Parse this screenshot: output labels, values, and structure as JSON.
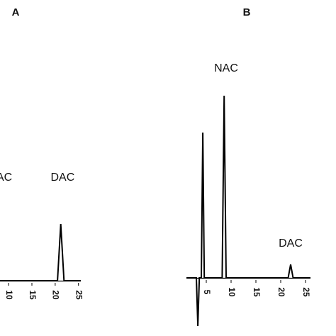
{
  "chart_data": [
    {
      "type": "chromatogram",
      "panel": "A",
      "x": [
        8,
        20.5,
        21.2,
        21.9,
        25.5
      ],
      "values": [
        0,
        0,
        80,
        0,
        0
      ],
      "xlim": [
        8,
        25.5
      ],
      "xticks": [
        10,
        15,
        20,
        25
      ],
      "ylim": [
        -70,
        260
      ],
      "annotations": [
        {
          "text": "NAC",
          "x": 8.2,
          "y": 145
        },
        {
          "text": "DAC",
          "x": 21.6,
          "y": 145
        }
      ],
      "color": "#000000"
    },
    {
      "type": "chromatogram",
      "panel": "B",
      "x": [
        1,
        3.0,
        3.3,
        3.6,
        4.0,
        4.3,
        4.6,
        8.2,
        8.6,
        9.0,
        21.5,
        22,
        22.5,
        26
      ],
      "values": [
        0,
        0,
        -68,
        0,
        0,
        205,
        0,
        0,
        257,
        0,
        0,
        19,
        0,
        0
      ],
      "xlim": [
        1,
        26
      ],
      "xticks": [
        5,
        10,
        15,
        20,
        25
      ],
      "ylim": [
        -70,
        260
      ],
      "annotations": [
        {
          "text": "NAC",
          "x": 9,
          "y": 295
        },
        {
          "text": "DAC",
          "x": 22,
          "y": 48
        }
      ],
      "color": "#000000"
    }
  ]
}
